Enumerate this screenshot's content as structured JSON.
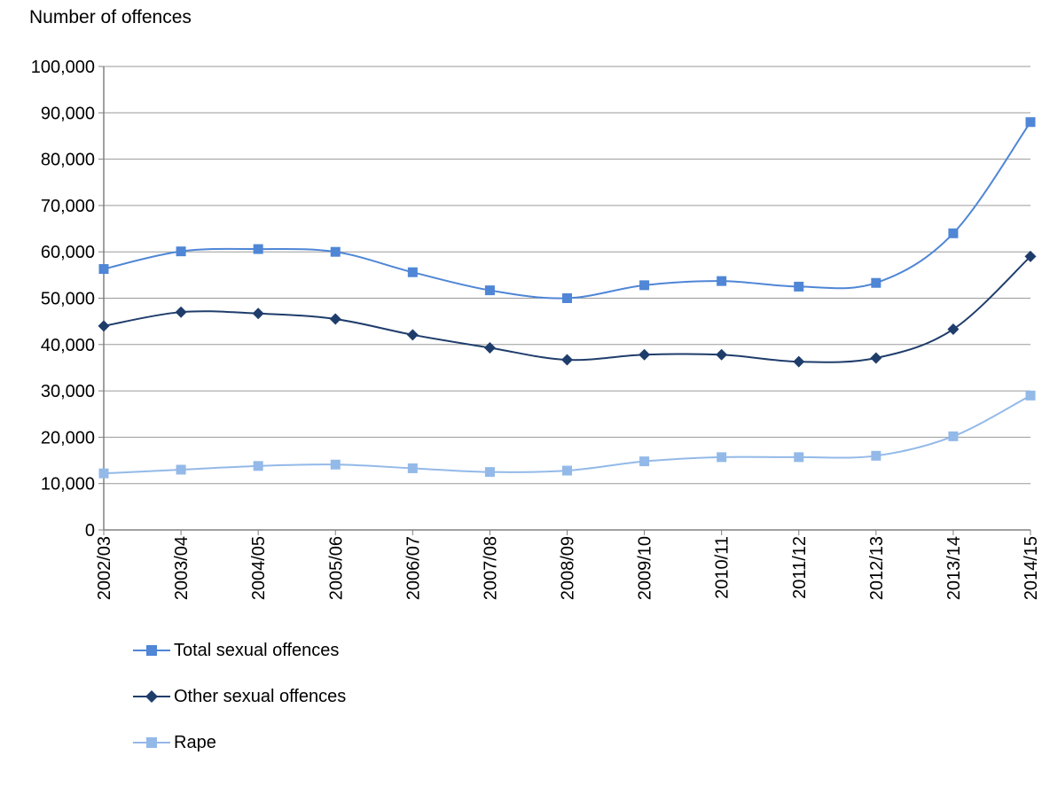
{
  "chart_data": {
    "type": "line",
    "ylabel": "Number of offences",
    "xlabel": "",
    "title": "",
    "categories": [
      "2002/03",
      "2003/04",
      "2004/05",
      "2005/06",
      "2006/07",
      "2007/08",
      "2008/09",
      "2009/10",
      "2010/11",
      "2011/12",
      "2012/13",
      "2013/14",
      "2014/15"
    ],
    "ylim": [
      0,
      100000
    ],
    "yticks": [
      0,
      10000,
      20000,
      30000,
      40000,
      50000,
      60000,
      70000,
      80000,
      90000,
      100000
    ],
    "ytick_labels": [
      "0",
      "10,000",
      "20,000",
      "30,000",
      "40,000",
      "50,000",
      "60,000",
      "70,000",
      "80,000",
      "90,000",
      "100,000"
    ],
    "grid": true,
    "legend_position": "bottom-left",
    "series": [
      {
        "name": "Total sexual offences",
        "color": "#4f86d6",
        "marker": "square",
        "values": [
          56300,
          60100,
          60600,
          60000,
          55600,
          51700,
          50000,
          52800,
          53700,
          52500,
          53300,
          64000,
          88000
        ]
      },
      {
        "name": "Other sexual offences",
        "color": "#1f3d6b",
        "marker": "diamond",
        "values": [
          44000,
          47000,
          46700,
          45500,
          42100,
          39300,
          36700,
          37800,
          37800,
          36300,
          37100,
          43300,
          59000
        ]
      },
      {
        "name": "Rape",
        "color": "#93b9e8",
        "marker": "square",
        "values": [
          12200,
          13000,
          13800,
          14100,
          13300,
          12500,
          12800,
          14800,
          15700,
          15700,
          16000,
          20200,
          29000
        ]
      }
    ]
  }
}
